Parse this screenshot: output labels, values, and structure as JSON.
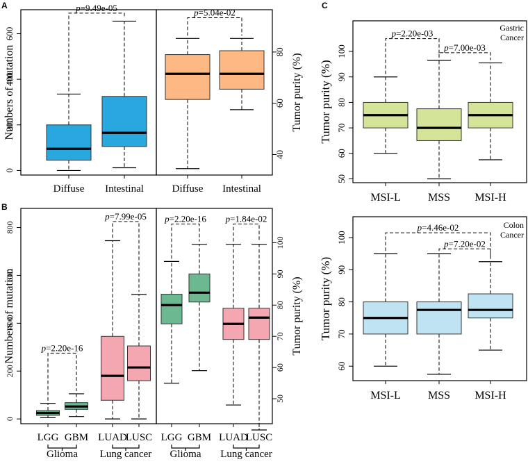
{
  "figure": {
    "panel_letters": [
      "A",
      "B",
      "C"
    ]
  },
  "chart_data": [
    {
      "id": "A-left",
      "type": "box",
      "ylabel": "Numbers of mutation",
      "yticks": [
        0,
        200,
        400,
        600
      ],
      "ylim": [
        -20,
        705
      ],
      "color": "#29a8e0",
      "categories": [
        "Diffuse",
        "Intestinal"
      ],
      "boxes": [
        {
          "min": 0,
          "q1": 45,
          "median": 95,
          "q3": 200,
          "max": 335
        },
        {
          "min": 12,
          "q1": 105,
          "median": 165,
          "q3": 325,
          "max": 655
        }
      ],
      "pvalues": [
        {
          "label": "9.49e-05",
          "from": 0,
          "to": 1,
          "y": 690
        }
      ]
    },
    {
      "id": "A-right",
      "type": "box",
      "ylabel": "Tumor purity (%)",
      "yticks": [
        40,
        60,
        80
      ],
      "ylim": [
        32,
        96.5
      ],
      "color": "#fdb883",
      "categories": [
        "Diffuse",
        "Intestinal"
      ],
      "boxes": [
        {
          "min": 34.5,
          "q1": 61.5,
          "median": 71.5,
          "q3": 79,
          "max": 85.3
        },
        {
          "min": 57.5,
          "q1": 65.5,
          "median": 71.5,
          "q3": 80.5,
          "max": 85.3
        }
      ],
      "pvalues": [
        {
          "label": "5.04e-02",
          "from": 0,
          "to": 1,
          "y": 93.4
        }
      ]
    },
    {
      "id": "B-left",
      "type": "box",
      "ylabel": "Numbers of mutation",
      "yticks": [
        0,
        200,
        400,
        600,
        800
      ],
      "ylim": [
        -20,
        880
      ],
      "colors": [
        "#2e9b62",
        "#2e9b62",
        "#f0828e",
        "#f0828e"
      ],
      "categories": [
        "LGG",
        "GBM",
        "LUAD",
        "LUSC"
      ],
      "groups": [
        {
          "label": "Glioma",
          "members": [
            0,
            1
          ]
        },
        {
          "label": "Lung cancer",
          "members": [
            2,
            3
          ]
        }
      ],
      "boxes": [
        {
          "min": 5,
          "q1": 15,
          "median": 25,
          "q3": 35,
          "max": 65
        },
        {
          "min": 10,
          "q1": 40,
          "median": 52,
          "q3": 68,
          "max": 105
        },
        {
          "min": 0,
          "q1": 78,
          "median": 180,
          "q3": 345,
          "max": 745
        },
        {
          "min": 0,
          "q1": 160,
          "median": 215,
          "q3": 305,
          "max": 520
        }
      ],
      "pvalues": [
        {
          "label": "2.20e-16",
          "from": 0,
          "to": 1,
          "y": 275
        },
        {
          "label": "7.99e-05",
          "from": 2,
          "to": 3,
          "y": 825
        }
      ]
    },
    {
      "id": "B-right",
      "type": "box",
      "ylabel": "Tumor purity (%)",
      "yticks": [
        50,
        60,
        70,
        80,
        90,
        100
      ],
      "ylim": [
        42,
        111
      ],
      "colors": [
        "#2e9b62",
        "#2e9b62",
        "#f0828e",
        "#f0828e"
      ],
      "categories": [
        "LGG",
        "GBM",
        "LUAD",
        "LUSC"
      ],
      "groups": [
        {
          "label": "Glioma",
          "members": [
            0,
            1
          ]
        },
        {
          "label": "Lung cancer",
          "members": [
            2,
            3
          ]
        }
      ],
      "boxes": [
        {
          "min": 55,
          "q1": 74,
          "median": 80,
          "q3": 83.5,
          "max": 94
        },
        {
          "min": 59,
          "q1": 81,
          "median": 84,
          "q3": 90,
          "max": 99.5
        },
        {
          "min": 48,
          "q1": 69,
          "median": 74,
          "q3": 79,
          "max": 99.5
        },
        {
          "min": 40,
          "q1": 69,
          "median": 76,
          "q3": 79,
          "max": 99.5
        }
      ],
      "pvalues": [
        {
          "label": "2.20e-16",
          "from": 0,
          "to": 1,
          "y": 106
        },
        {
          "label": "1.84e-02",
          "from": 2,
          "to": 3,
          "y": 106
        }
      ]
    },
    {
      "id": "C-top",
      "type": "box",
      "ylabel": "Tumor purity (%)",
      "annotation": [
        "Gastric",
        "Cancer"
      ],
      "yticks": [
        50,
        60,
        70,
        80,
        90,
        100
      ],
      "ylim": [
        48.5,
        112
      ],
      "color": "#d4e59a",
      "categories": [
        "MSI-L",
        "MSS",
        "MSI-H"
      ],
      "boxes": [
        {
          "min": 60,
          "q1": 70,
          "median": 75,
          "q3": 80,
          "max": 90
        },
        {
          "min": 50,
          "q1": 65,
          "median": 70,
          "q3": 77.5,
          "max": 96.5
        },
        {
          "min": 57.5,
          "q1": 70,
          "median": 75,
          "q3": 80,
          "max": 95.5
        }
      ],
      "pvalues": [
        {
          "label": "2.20e-03",
          "from": 0,
          "to": 1,
          "y": 105
        },
        {
          "label": "7.00e-03",
          "from": 1,
          "to": 2,
          "y": 99.5
        }
      ]
    },
    {
      "id": "C-bottom",
      "type": "box",
      "ylabel": "Tumor purity (%)",
      "annotation": [
        "Colon",
        "Cancer"
      ],
      "yticks": [
        60,
        70,
        80,
        90,
        100
      ],
      "ylim": [
        55.5,
        106.5
      ],
      "color": "#bfe3f2",
      "categories": [
        "MSI-L",
        "MSS",
        "MSI-H"
      ],
      "boxes": [
        {
          "min": 60,
          "q1": 70,
          "median": 75,
          "q3": 80,
          "max": 95
        },
        {
          "min": 57.5,
          "q1": 70,
          "median": 77.5,
          "q3": 80,
          "max": 95
        },
        {
          "min": 65,
          "q1": 75,
          "median": 77.5,
          "q3": 82.5,
          "max": 92.5
        }
      ],
      "pvalues": [
        {
          "label": "4.46e-02",
          "from": 0,
          "to": 2,
          "y": 101.5
        },
        {
          "label": "7.20e-02",
          "from": 1,
          "to": 2,
          "y": 96.5
        }
      ]
    }
  ]
}
